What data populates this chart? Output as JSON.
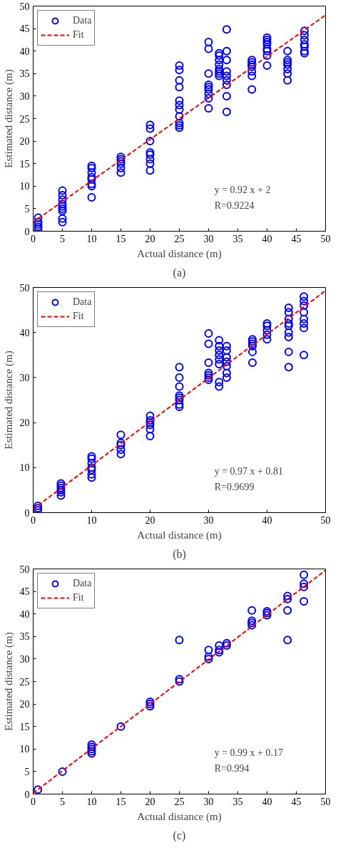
{
  "chart_data": [
    {
      "type": "scatter",
      "xlabel": "Actual distance (m)",
      "ylabel": "Estimated distance (m)",
      "xlim": [
        0,
        50
      ],
      "ylim": [
        0,
        50
      ],
      "xticks": [
        0,
        5,
        10,
        15,
        20,
        25,
        30,
        35,
        40,
        45,
        50
      ],
      "yticks": [
        0,
        5,
        10,
        15,
        20,
        25,
        30,
        35,
        40,
        45,
        50
      ],
      "grid": false,
      "legend": "top left",
      "annotations": [
        "y = 0.92 x + 2",
        "R=0.9224",
        "(a)"
      ],
      "series": [
        {
          "name": "Data",
          "marker": "circle",
          "color": "#0000ff",
          "x": [
            0.85,
            0.85,
            0.85,
            0.85,
            0.85,
            5,
            5,
            5,
            5,
            5,
            5,
            5,
            5,
            5,
            10,
            10,
            10,
            10,
            10,
            10,
            10,
            10,
            15,
            15,
            15,
            15,
            15,
            15,
            20,
            20,
            20,
            20,
            20,
            20,
            20,
            20,
            25,
            25,
            25,
            25,
            25,
            25,
            25,
            25,
            25,
            25,
            25,
            30,
            30,
            30,
            30,
            30,
            30,
            30,
            30,
            30,
            31.8,
            31.8,
            31.8,
            31.8,
            31.8,
            31.8,
            31.8,
            31.8,
            33.1,
            33.1,
            33.1,
            33.1,
            33.1,
            33.1,
            33.1,
            33.1,
            33.1,
            37.4,
            37.4,
            37.4,
            37.4,
            37.4,
            37.4,
            37.4,
            40,
            40,
            40,
            40,
            40,
            40,
            40,
            40,
            43.5,
            43.5,
            43.5,
            43.5,
            43.5,
            43.5,
            43.5,
            46.4,
            46.4,
            46.4,
            46.4,
            46.4,
            46.4,
            46.4
          ],
          "values": [
            0.5,
            1,
            1.5,
            2,
            3,
            2,
            2.8,
            4.5,
            5,
            5.5,
            6,
            7,
            8,
            9,
            7.5,
            10,
            10.5,
            11.5,
            12,
            13,
            14,
            14.5,
            13,
            14,
            15,
            15.5,
            16,
            16.5,
            13.5,
            15,
            16,
            17,
            17.5,
            20,
            22.8,
            23.6,
            23,
            23.5,
            24,
            25.5,
            27,
            28,
            29,
            32,
            33.5,
            35.8,
            36.8,
            27.3,
            29.5,
            30.5,
            31.5,
            32,
            32.5,
            35,
            40.5,
            42,
            34.5,
            35,
            35.5,
            36,
            37,
            38,
            39,
            39.5,
            26.5,
            30,
            32.5,
            33.5,
            34.5,
            35.5,
            38,
            40,
            44.8,
            31.5,
            34.5,
            35.5,
            36.5,
            37,
            37.5,
            38,
            36.8,
            39,
            40,
            40.5,
            41.5,
            42,
            42.5,
            43,
            33.5,
            35,
            36,
            37,
            37.5,
            38,
            40,
            39.5,
            40,
            41,
            41.5,
            42.5,
            43.5,
            44.5
          ]
        },
        {
          "name": "Fit",
          "type": "line",
          "line_style": "dashed",
          "color": "#ff0000",
          "x": [
            0,
            50
          ],
          "values": [
            2,
            48
          ]
        }
      ]
    },
    {
      "type": "scatter",
      "xlabel": "Actual distance (m)",
      "ylabel": "Estimated distance (m)",
      "xlim": [
        0,
        50
      ],
      "ylim": [
        0,
        50
      ],
      "xticks": [
        0,
        10,
        20,
        30,
        40,
        50
      ],
      "yticks": [
        0,
        10,
        20,
        30,
        40,
        50
      ],
      "grid": false,
      "legend": "top left",
      "annotations": [
        "y = 0.97 x + 0.81",
        "R=0.9699",
        "(b)"
      ],
      "series": [
        {
          "name": "Data",
          "marker": "circle",
          "color": "#0000ff",
          "x": [
            0.8,
            0.8,
            0.8,
            4.75,
            4.75,
            4.75,
            4.75,
            4.75,
            4.75,
            10,
            10,
            10,
            10,
            10,
            10,
            10,
            15,
            15,
            15,
            15,
            15,
            20,
            20,
            20,
            20,
            20,
            20,
            25,
            25,
            25,
            25,
            25,
            25,
            25,
            25,
            30,
            30,
            30,
            30,
            30,
            30,
            30,
            31.8,
            31.8,
            31.8,
            31.8,
            31.8,
            31.8,
            31.8,
            31.8,
            33.1,
            33.1,
            33.1,
            33.1,
            33.1,
            33.1,
            33.1,
            37.5,
            37.5,
            37.5,
            37.5,
            37.5,
            37.5,
            40,
            40,
            40,
            40,
            40,
            43.7,
            43.7,
            43.7,
            43.7,
            43.7,
            43.7,
            43.7,
            43.7,
            43.7,
            46.3,
            46.3,
            46.3,
            46.3,
            46.3,
            46.3,
            46.3,
            46.3
          ],
          "values": [
            0.5,
            1,
            1.5,
            3.8,
            4.5,
            5,
            5.5,
            6,
            6.5,
            7.8,
            8.5,
            9.5,
            10,
            11,
            12,
            12.5,
            13,
            14,
            15,
            15.5,
            17.3,
            17,
            18.5,
            19.5,
            20,
            20.5,
            21.5,
            23.5,
            24,
            25,
            25.5,
            26,
            28,
            30,
            32.3,
            29.5,
            30,
            30.5,
            31,
            33.3,
            37.5,
            39.8,
            28,
            29,
            33,
            34,
            35,
            36,
            37,
            38.3,
            30,
            31,
            32.5,
            33.5,
            34.5,
            36,
            37,
            33.3,
            35.7,
            37,
            37.5,
            38,
            38.5,
            38.5,
            39.5,
            40.5,
            41.5,
            42,
            32.3,
            35.7,
            39,
            40,
            41.5,
            42,
            43,
            44.5,
            45.5,
            35,
            41,
            42,
            43,
            44.5,
            46,
            47,
            48
          ]
        },
        {
          "name": "Fit",
          "type": "line",
          "line_style": "dashed",
          "color": "#ff0000",
          "x": [
            0,
            50
          ],
          "values": [
            0.8,
            49.3
          ]
        }
      ]
    },
    {
      "type": "scatter",
      "xlabel": "Actual distance (m)",
      "ylabel": "Estimated distance (m)",
      "xlim": [
        0,
        50
      ],
      "ylim": [
        0,
        50
      ],
      "xticks": [
        0,
        5,
        10,
        15,
        20,
        25,
        30,
        35,
        40,
        45,
        50
      ],
      "yticks": [
        0,
        5,
        10,
        15,
        20,
        25,
        30,
        35,
        40,
        45,
        50
      ],
      "grid": false,
      "legend": "top left",
      "annotations": [
        "y = 0.99 x + 0.17",
        "R=0.994",
        "(c)"
      ],
      "series": [
        {
          "name": "Data",
          "marker": "circle",
          "color": "#0000ff",
          "x": [
            0.8,
            5,
            10,
            10,
            10,
            10,
            10,
            15,
            20,
            20,
            20,
            25,
            25,
            25,
            30,
            30,
            30,
            31.8,
            31.8,
            31.8,
            33.1,
            33.1,
            37.4,
            37.4,
            37.4,
            37.4,
            40,
            40,
            40,
            43.5,
            43.5,
            43.5,
            43.5,
            46.3,
            46.3,
            46.3,
            46.3
          ],
          "values": [
            1,
            5,
            9,
            9.5,
            10,
            10.5,
            11,
            15,
            19.5,
            20,
            20.5,
            25,
            25.5,
            34.2,
            30,
            30.5,
            32,
            31.5,
            32,
            33,
            33,
            33.5,
            37.5,
            38,
            38.5,
            40.8,
            39.7,
            40.2,
            40.6,
            34.2,
            40.8,
            43.3,
            44,
            42.8,
            46,
            46.7,
            48.7
          ]
        },
        {
          "name": "Fit",
          "type": "line",
          "line_style": "dashed",
          "color": "#ff0000",
          "x": [
            0,
            50
          ],
          "values": [
            0.2,
            49.7
          ]
        }
      ]
    }
  ]
}
